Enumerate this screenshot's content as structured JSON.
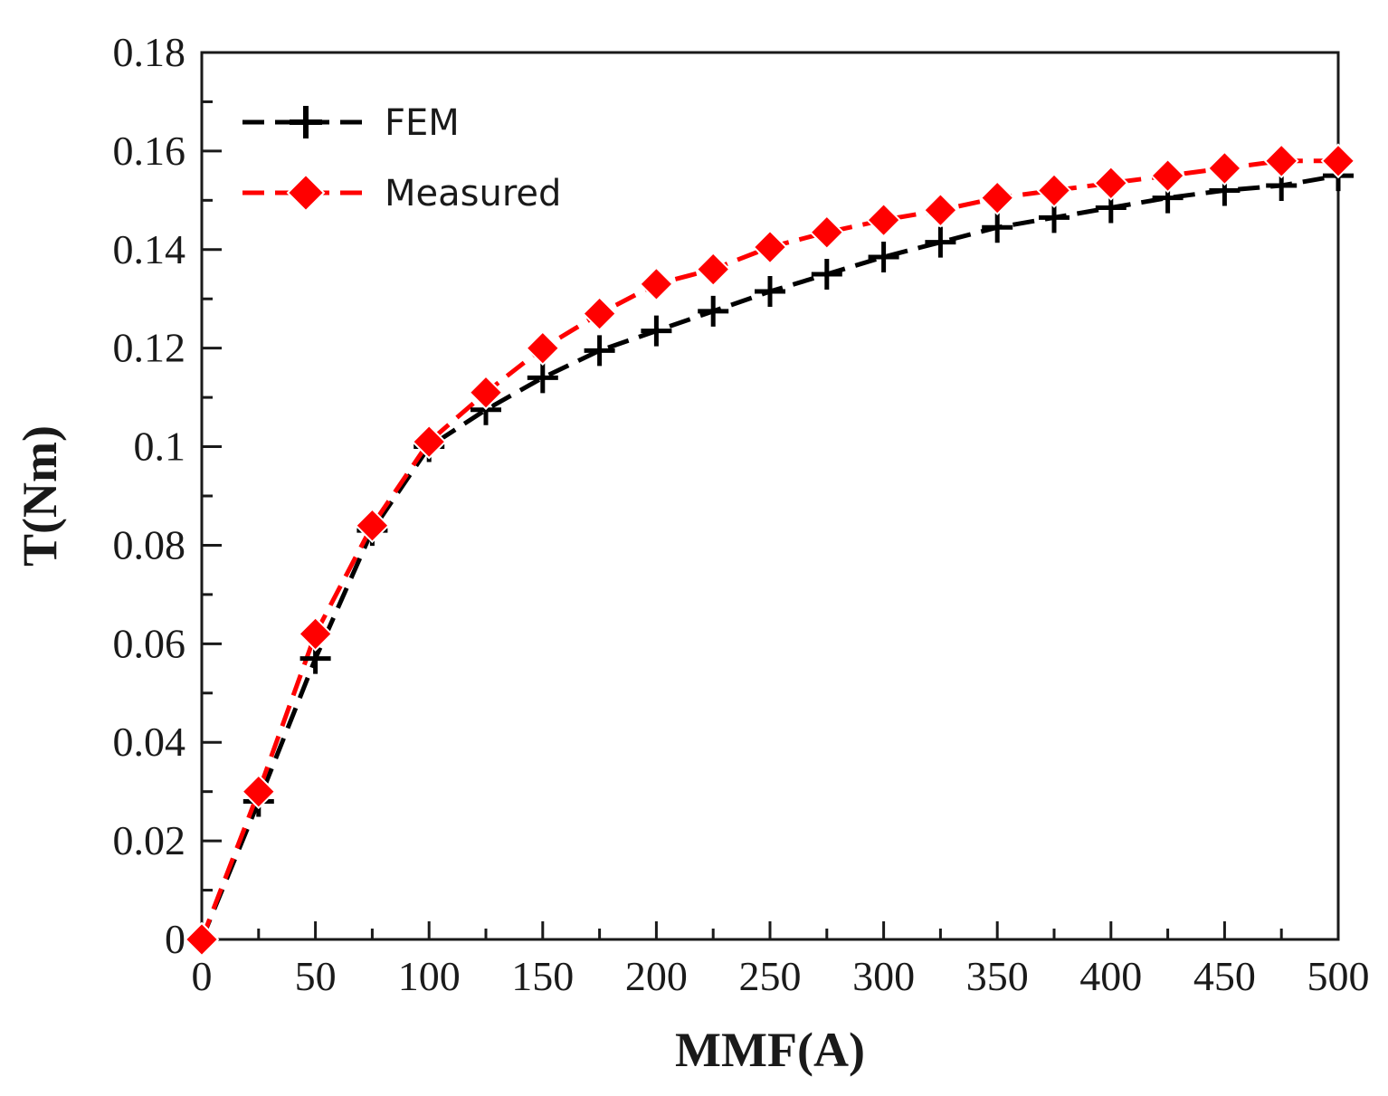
{
  "chart_data": {
    "type": "line",
    "title": "",
    "xlabel": "MMF(A)",
    "ylabel": "T(Nm)",
    "xlim": [
      0,
      500
    ],
    "ylim": [
      0,
      0.18
    ],
    "xticks": [
      0,
      50,
      100,
      150,
      200,
      250,
      300,
      350,
      400,
      450,
      500
    ],
    "xtick_labels": [
      "0",
      "50",
      "100",
      "150",
      "200",
      "250",
      "300",
      "350",
      "400",
      "450",
      "500"
    ],
    "yticks": [
      0,
      0.02,
      0.04,
      0.06,
      0.08,
      0.1,
      0.12,
      0.14,
      0.16,
      0.18
    ],
    "ytick_labels": [
      "0",
      "0.02",
      "0.04",
      "0.06",
      "0.08",
      "0.1",
      "0.12",
      "0.14",
      "0.16",
      "0.18"
    ],
    "grid": false,
    "legend_position": "top-left",
    "x": [
      0,
      25,
      50,
      75,
      100,
      125,
      150,
      175,
      200,
      225,
      250,
      275,
      300,
      325,
      350,
      375,
      400,
      425,
      450,
      475,
      500
    ],
    "series": [
      {
        "name": "FEM",
        "marker": "plus",
        "line_style": "dashed",
        "color": "#000000",
        "values": [
          0,
          0.028,
          0.057,
          0.083,
          0.1,
          0.1075,
          0.114,
          0.1195,
          0.1235,
          0.1275,
          0.1315,
          0.135,
          0.1385,
          0.1415,
          0.1445,
          0.1465,
          0.1485,
          0.1505,
          0.152,
          0.153,
          0.155
        ]
      },
      {
        "name": "Measured",
        "marker": "diamond",
        "line_style": "dashed",
        "color": "#ff0000",
        "values": [
          0,
          0.03,
          0.062,
          0.084,
          0.101,
          0.111,
          0.12,
          0.127,
          0.133,
          0.136,
          0.1405,
          0.1435,
          0.146,
          0.148,
          0.1505,
          0.152,
          0.1535,
          0.155,
          0.1565,
          0.158,
          0.158
        ]
      }
    ]
  }
}
